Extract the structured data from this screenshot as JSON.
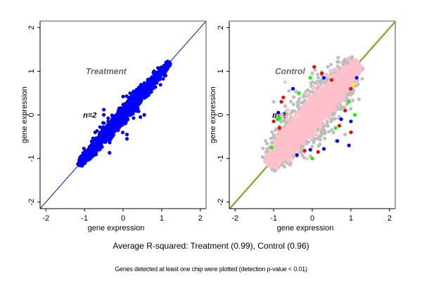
{
  "chart_data": [
    {
      "type": "scatter",
      "title": "Treatment",
      "annotation": "n=2",
      "xlabel": "gene expression",
      "ylabel": "gene expression",
      "xlim": [
        -2.15,
        2.15
      ],
      "ylim": [
        -2.15,
        2.15
      ],
      "xticks": [
        -2,
        -1,
        0,
        1,
        2
      ],
      "yticks": [
        -2,
        -1,
        0,
        1,
        2
      ],
      "xtick_labels": [
        "-2",
        "-1",
        "0",
        "1",
        "2"
      ],
      "ytick_labels": [
        "-2",
        "-1",
        "0",
        "1",
        "2"
      ],
      "grid": false,
      "reference_line": {
        "slope": 1,
        "intercept": 0,
        "colors": [
          "#0000ff"
        ]
      },
      "point_cloud": {
        "x_range": [
          -1.15,
          1.2
        ],
        "spread_sd": 0.06,
        "colors": [
          "#0000ff"
        ]
      },
      "outliers": [
        {
          "x": -0.5,
          "y": 0.12,
          "color": "#0000ff"
        },
        {
          "x": -0.5,
          "y": 0.0,
          "color": "#0000ff"
        },
        {
          "x": -0.35,
          "y": -0.87,
          "color": "#0000ff"
        },
        {
          "x": 0.1,
          "y": -0.45,
          "color": "#0000ff"
        },
        {
          "x": 0.1,
          "y": -0.55,
          "color": "#0000ff"
        },
        {
          "x": 0.45,
          "y": -0.05,
          "color": "#0000ff"
        },
        {
          "x": 0.55,
          "y": 0.0,
          "color": "#0000ff"
        },
        {
          "x": 0.8,
          "y": 1.0,
          "color": "#0000ff"
        },
        {
          "x": 1.1,
          "y": 0.9,
          "color": "#0000ff"
        },
        {
          "x": 0.0,
          "y": 0.42,
          "color": "#0000ff"
        },
        {
          "x": -0.55,
          "y": -0.5,
          "color": "#0000ff"
        },
        {
          "x": -0.7,
          "y": -0.6,
          "color": "#0000ff"
        }
      ]
    },
    {
      "type": "scatter",
      "title": "Control",
      "annotation": "n=2",
      "xlabel": "gene expression",
      "ylabel": "gene expression",
      "xlim": [
        -2.15,
        2.15
      ],
      "ylim": [
        -2.15,
        2.15
      ],
      "xticks": [
        -2,
        -1,
        0,
        1,
        2
      ],
      "yticks": [
        -2,
        -1,
        0,
        1,
        2
      ],
      "xtick_labels": [
        "-2",
        "-1",
        "0",
        "1",
        "2"
      ],
      "ytick_labels": [
        "-2",
        "-1",
        "0",
        "1",
        "2"
      ],
      "grid": false,
      "reference_line": {
        "slope": 1,
        "intercept": 0,
        "colors": [
          "#ffc0cb",
          "#ffff00",
          "#00cc00",
          "#808080"
        ]
      },
      "point_cloud": {
        "x_range": [
          -1.15,
          1.2
        ],
        "spread_sd": 0.18,
        "colors": [
          "#ffc0cb",
          "#bebebe"
        ]
      },
      "outlier_colors": [
        "#ff0000",
        "#0000ff",
        "#00ff00",
        "#bebebe",
        "#ffc0cb",
        "#ffff00"
      ],
      "outliers": [
        {
          "x": 0.05,
          "y": 1.1,
          "color": "#ff0000"
        },
        {
          "x": 0.4,
          "y": 1.1,
          "color": "#bebebe"
        },
        {
          "x": 0.25,
          "y": 0.95,
          "color": "#ff0000"
        },
        {
          "x": 0.0,
          "y": 0.95,
          "color": "#bebebe"
        },
        {
          "x": -0.05,
          "y": 0.85,
          "color": "#00ff00"
        },
        {
          "x": 0.3,
          "y": 0.85,
          "color": "#0000ff"
        },
        {
          "x": 0.5,
          "y": 0.8,
          "color": "#ff0000"
        },
        {
          "x": -0.7,
          "y": 0.75,
          "color": "#ffc0cb"
        },
        {
          "x": -0.5,
          "y": 0.6,
          "color": "#0000ff"
        },
        {
          "x": -0.6,
          "y": 0.55,
          "color": "#bebebe"
        },
        {
          "x": -0.35,
          "y": 0.5,
          "color": "#00ff00"
        },
        {
          "x": -0.75,
          "y": 0.4,
          "color": "#ff0000"
        },
        {
          "x": -1.0,
          "y": 0.3,
          "color": "#bebebe"
        },
        {
          "x": -0.8,
          "y": 0.3,
          "color": "#ff0000"
        },
        {
          "x": -0.7,
          "y": 0.2,
          "color": "#bebebe"
        },
        {
          "x": -1.0,
          "y": -0.15,
          "color": "#ff0000"
        },
        {
          "x": -0.9,
          "y": -0.1,
          "color": "#00ff00"
        },
        {
          "x": -0.85,
          "y": -0.3,
          "color": "#ff0000"
        },
        {
          "x": -1.05,
          "y": -0.75,
          "color": "#00ff00"
        },
        {
          "x": -0.2,
          "y": -0.82,
          "color": "#ff0000"
        },
        {
          "x": -0.05,
          "y": -0.8,
          "color": "#0000ff"
        },
        {
          "x": 0.15,
          "y": -0.85,
          "color": "#ff0000"
        },
        {
          "x": 0.3,
          "y": -0.78,
          "color": "#0000ff"
        },
        {
          "x": -0.4,
          "y": -0.92,
          "color": "#0000ff"
        },
        {
          "x": -0.15,
          "y": -1.0,
          "color": "#ffc0cb"
        },
        {
          "x": 0.0,
          "y": -1.0,
          "color": "#00ff00"
        },
        {
          "x": 0.65,
          "y": -0.6,
          "color": "#0000ff"
        },
        {
          "x": 0.95,
          "y": -0.7,
          "color": "#0000ff"
        },
        {
          "x": 1.0,
          "y": -0.4,
          "color": "#ff0000"
        },
        {
          "x": 0.85,
          "y": -0.45,
          "color": "#bebebe"
        },
        {
          "x": 1.1,
          "y": 0.0,
          "color": "#00ff00"
        },
        {
          "x": 1.0,
          "y": -0.15,
          "color": "#0000ff"
        },
        {
          "x": 0.75,
          "y": -0.1,
          "color": "#0000ff"
        },
        {
          "x": 1.15,
          "y": 0.85,
          "color": "#0000ff"
        },
        {
          "x": 1.0,
          "y": 0.6,
          "color": "#ff0000"
        },
        {
          "x": 1.05,
          "y": 0.7,
          "color": "#ffff00"
        },
        {
          "x": 0.95,
          "y": 0.3,
          "color": "#00ff00"
        },
        {
          "x": 0.85,
          "y": 0.1,
          "color": "#ff0000"
        },
        {
          "x": 0.6,
          "y": -0.3,
          "color": "#00ff00"
        },
        {
          "x": 0.7,
          "y": -0.25,
          "color": "#ff0000"
        }
      ]
    }
  ],
  "captions": {
    "main": "Average R-squared: Treatment (0.99), Control (0.96)",
    "sub": "Genes detected at least one chip were plotted (detection p-value < 0.01)"
  }
}
